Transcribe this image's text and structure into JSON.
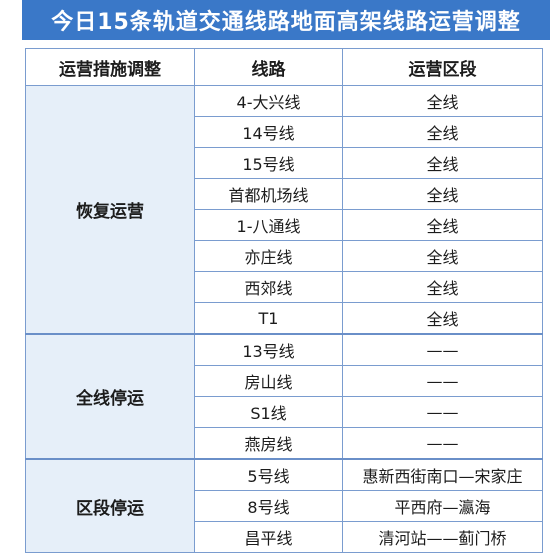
{
  "title": "今日15条轨道交通线路地面高架线路运营调整",
  "table": {
    "headers": [
      "运营措施调整",
      "线路",
      "运营区段"
    ],
    "groups": [
      {
        "measure": "恢复运营",
        "rows": [
          {
            "line": "4-大兴线",
            "section": "全线"
          },
          {
            "line": "14号线",
            "section": "全线"
          },
          {
            "line": "15号线",
            "section": "全线"
          },
          {
            "line": "首都机场线",
            "section": "全线"
          },
          {
            "line": "1-八通线",
            "section": "全线"
          },
          {
            "line": "亦庄线",
            "section": "全线"
          },
          {
            "line": "西郊线",
            "section": "全线"
          },
          {
            "line": "T1",
            "section": "全线"
          }
        ]
      },
      {
        "measure": "全线停运",
        "rows": [
          {
            "line": "13号线",
            "section": "——"
          },
          {
            "line": "房山线",
            "section": "——"
          },
          {
            "line": "S1线",
            "section": "——"
          },
          {
            "line": "燕房线",
            "section": "——"
          }
        ]
      },
      {
        "measure": "区段停运",
        "rows": [
          {
            "line": "5号线",
            "section": "惠新西街南口—宋家庄"
          },
          {
            "line": "8号线",
            "section": "平西府—瀛海"
          },
          {
            "line": "昌平线",
            "section": "清河站——蓟门桥"
          }
        ]
      }
    ]
  },
  "colors": {
    "title_bg": "#3a78c8",
    "group_bg": "#e6eff9",
    "border": "#7a9ccf"
  }
}
